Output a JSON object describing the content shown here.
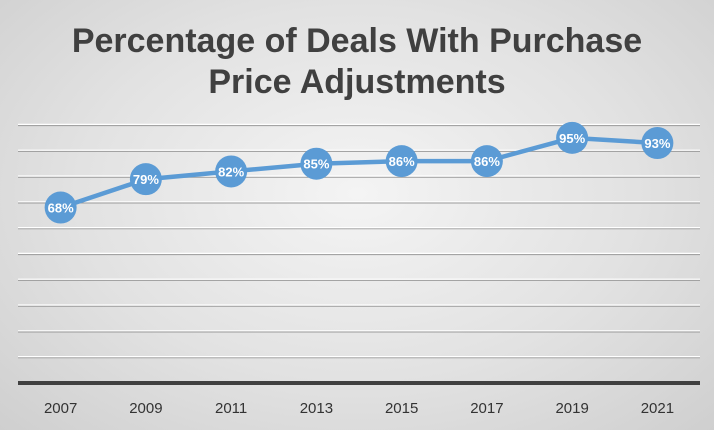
{
  "chart_data": {
    "type": "line",
    "title": [
      "Percentage of Deals With Purchase",
      "Price Adjustments"
    ],
    "categories": [
      "2007",
      "2009",
      "2011",
      "2013",
      "2015",
      "2017",
      "2019",
      "2021"
    ],
    "values": [
      68,
      79,
      82,
      85,
      86,
      86,
      95,
      93
    ],
    "data_labels": [
      "68%",
      "79%",
      "82%",
      "85%",
      "86%",
      "86%",
      "95%",
      "93%"
    ],
    "ylim": [
      0,
      100
    ],
    "y_axis_labels_shown": false,
    "grid": true,
    "legend": "none",
    "colors": {
      "series": "#5b9bd5",
      "marker": "#5b9bd5",
      "label_text": "#ffffff",
      "title": "#404040",
      "axis": "#404040"
    }
  }
}
